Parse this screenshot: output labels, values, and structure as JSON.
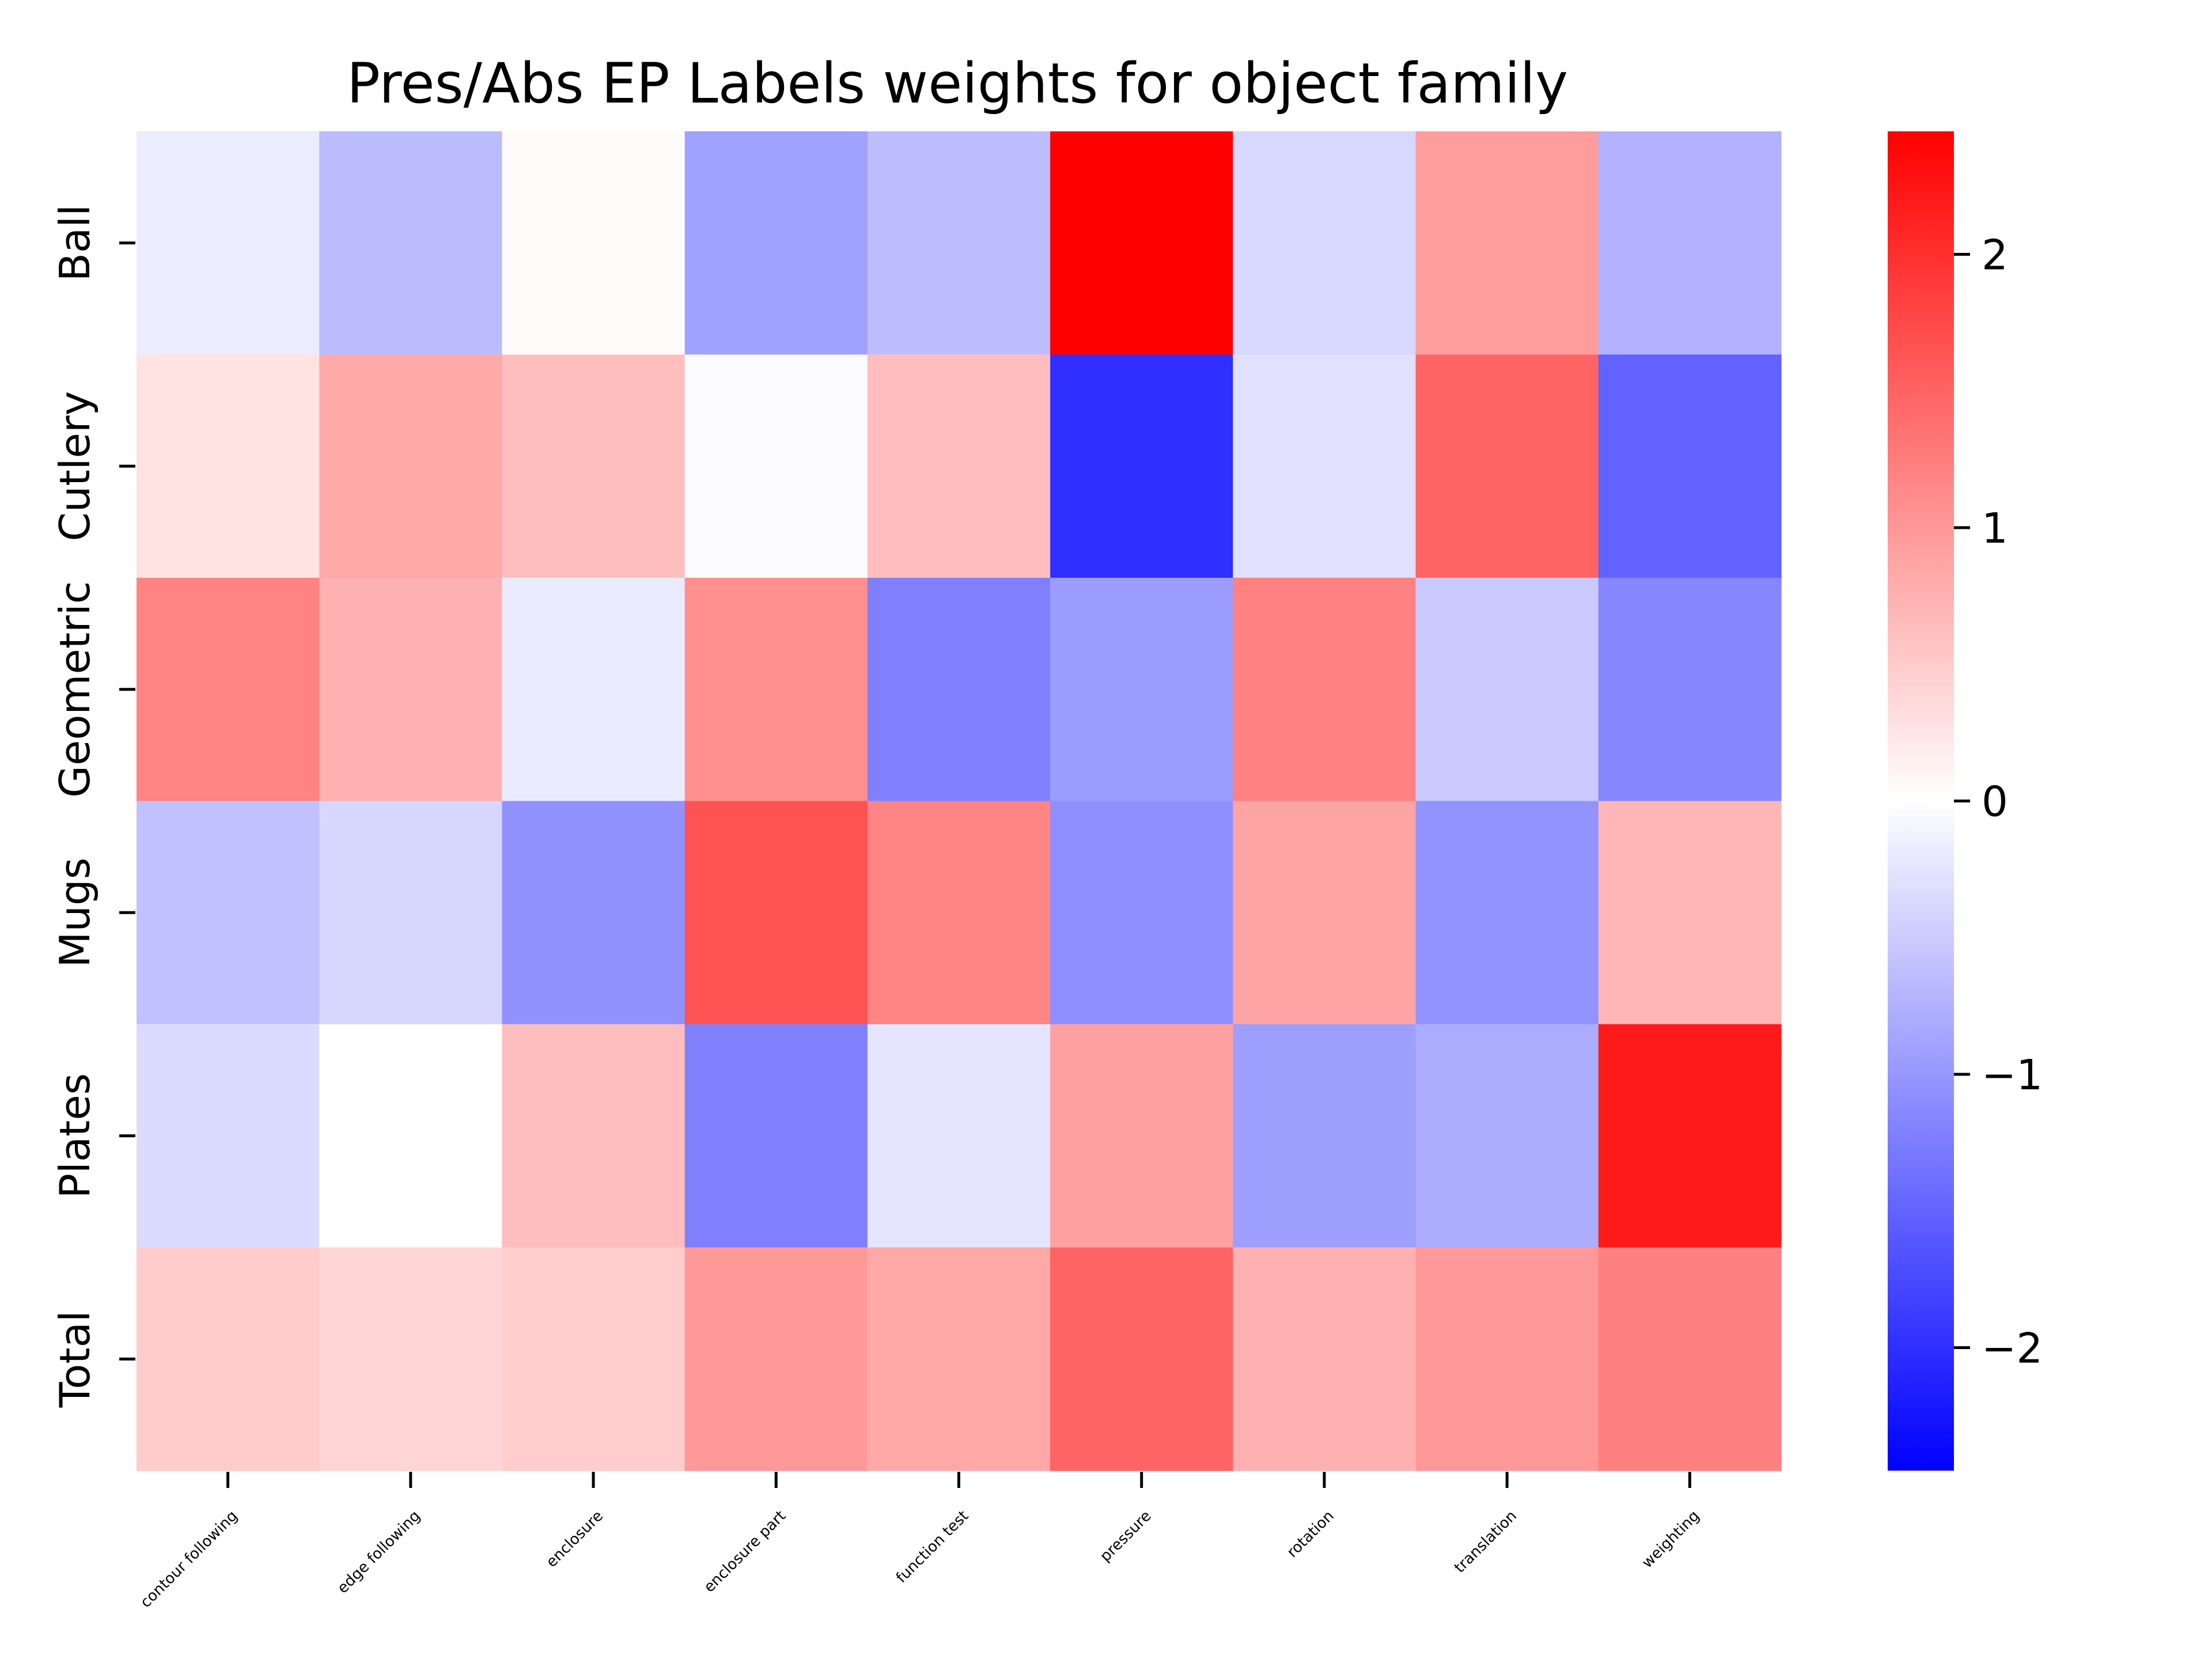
{
  "chart_data": {
    "type": "heatmap",
    "title": "Pres/Abs EP Labels weights for object family",
    "rows": [
      "Ball",
      "Cutlery",
      "Geometric",
      "Mugs",
      "Plates",
      "Total"
    ],
    "columns": [
      "contour following",
      "edge following",
      "enclosure",
      "enclosure part",
      "function test",
      "pressure",
      "rotation",
      "translation",
      "weighting"
    ],
    "values": [
      [
        -0.18,
        -0.65,
        0.04,
        -0.9,
        -0.63,
        2.45,
        -0.38,
        0.94,
        -0.75
      ],
      [
        0.28,
        0.83,
        0.62,
        -0.05,
        0.63,
        -2.0,
        -0.29,
        1.49,
        -1.51
      ],
      [
        1.19,
        0.76,
        -0.19,
        1.08,
        -1.22,
        -0.95,
        1.21,
        -0.52,
        -1.16
      ],
      [
        -0.6,
        -0.39,
        -1.06,
        1.66,
        1.18,
        -1.09,
        0.87,
        -1.04,
        0.7
      ],
      [
        -0.35,
        0.0,
        0.62,
        -1.22,
        -0.25,
        0.91,
        -0.93,
        -0.8,
        2.2
      ],
      [
        0.5,
        0.41,
        0.48,
        0.98,
        0.84,
        1.49,
        0.75,
        0.98,
        1.22
      ]
    ],
    "colormap": "bwr",
    "vmin": -2.45,
    "vmax": 2.45,
    "colorbar_ticks": [
      -2,
      -1,
      0,
      1,
      2
    ],
    "colorbar_tick_labels": [
      "−2",
      "−1",
      "0",
      "1",
      "2"
    ],
    "colors": {
      "low": "#0000ff",
      "mid": "#ffffff",
      "high": "#ff0000"
    },
    "grid": false
  }
}
